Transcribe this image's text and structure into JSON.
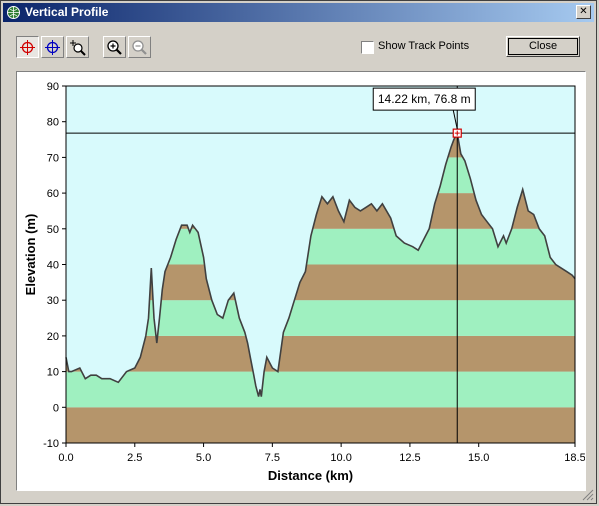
{
  "window": {
    "title": "Vertical Profile",
    "close_glyph": "✕"
  },
  "toolbar": {
    "buttons": [
      {
        "name": "crosshair-red-tool",
        "icon": "crosshair-red-icon",
        "pressed": true
      },
      {
        "name": "crosshair-blue-tool",
        "icon": "crosshair-blue-icon",
        "pressed": false
      },
      {
        "name": "zoom-box-tool",
        "icon": "zoom-box-icon",
        "pressed": false
      },
      {
        "name": "zoom-in-tool",
        "icon": "zoom-in-icon",
        "pressed": false
      },
      {
        "name": "zoom-out-tool",
        "icon": "zoom-out-icon",
        "pressed": false
      }
    ],
    "show_track_points_label": "Show Track Points",
    "show_track_points_checked": false,
    "close_label": "Close"
  },
  "chart_data": {
    "type": "area",
    "xlabel": "Distance   (km)",
    "ylabel": "Elevation  (m)",
    "xlim": [
      0,
      18.5
    ],
    "ylim": [
      -10,
      90
    ],
    "xticks": [
      "0.0",
      "2.5",
      "5.0",
      "7.5",
      "10.0",
      "12.5",
      "15.0",
      "18.5"
    ],
    "xtick_values": [
      0,
      2.5,
      5,
      7.5,
      10,
      12.5,
      15,
      18.5
    ],
    "yticks": [
      "90",
      "80",
      "70",
      "60",
      "50",
      "40",
      "30",
      "20",
      "10",
      "0",
      "-10"
    ],
    "ytick_values": [
      90,
      80,
      70,
      60,
      50,
      40,
      30,
      20,
      10,
      0,
      -10
    ],
    "band_colors": [
      "#b5956b",
      "#9ff0c0"
    ],
    "sky_color": "#d8fafc",
    "profile_color": "#404040",
    "cursor": {
      "x": 14.22,
      "y": 76.8,
      "label": "14.22 km, 76.8 m"
    },
    "x": [
      0,
      0.1,
      0.2,
      0.5,
      0.7,
      0.9,
      1.1,
      1.3,
      1.6,
      1.9,
      2.2,
      2.5,
      2.7,
      2.9,
      3.0,
      3.1,
      3.2,
      3.3,
      3.4,
      3.5,
      3.6,
      3.8,
      4.0,
      4.2,
      4.4,
      4.5,
      4.6,
      4.8,
      5.0,
      5.1,
      5.3,
      5.5,
      5.7,
      5.9,
      6.1,
      6.3,
      6.5,
      6.6,
      6.7,
      6.8,
      6.9,
      7.0,
      7.05,
      7.1,
      7.2,
      7.3,
      7.5,
      7.7,
      7.9,
      8.1,
      8.3,
      8.5,
      8.7,
      8.9,
      9.1,
      9.3,
      9.5,
      9.7,
      9.9,
      10.1,
      10.3,
      10.5,
      10.7,
      10.9,
      11.1,
      11.3,
      11.5,
      11.8,
      12.0,
      12.3,
      12.6,
      12.8,
      13.0,
      13.2,
      13.4,
      13.6,
      13.8,
      14.0,
      14.1,
      14.22,
      14.35,
      14.5,
      14.7,
      14.9,
      15.1,
      15.3,
      15.5,
      15.7,
      15.9,
      16.0,
      16.2,
      16.4,
      16.6,
      16.8,
      17.0,
      17.2,
      17.4,
      17.6,
      17.8,
      18.0,
      18.2,
      18.4,
      18.5
    ],
    "y": [
      14,
      10,
      10,
      11,
      8,
      9,
      9,
      8,
      8,
      7,
      10,
      11,
      14,
      20,
      25,
      39,
      25,
      18,
      25,
      33,
      38,
      42,
      47,
      51,
      51,
      49,
      51,
      49,
      42,
      36,
      30,
      26,
      25,
      30,
      32,
      25,
      21,
      18,
      14,
      10,
      6,
      3,
      5,
      3,
      10,
      14,
      11,
      10,
      21,
      25,
      30,
      35,
      38,
      48,
      54,
      59,
      57,
      59,
      55,
      52,
      58,
      56,
      55,
      56,
      57,
      55,
      57,
      53,
      48,
      46,
      45,
      44,
      47,
      50,
      57,
      62,
      68,
      73,
      75,
      76.8,
      71,
      69,
      64,
      58,
      54,
      52,
      50,
      45,
      48,
      46,
      50,
      56,
      61,
      55,
      54,
      50,
      48,
      42,
      40,
      39,
      38,
      37,
      36
    ]
  }
}
